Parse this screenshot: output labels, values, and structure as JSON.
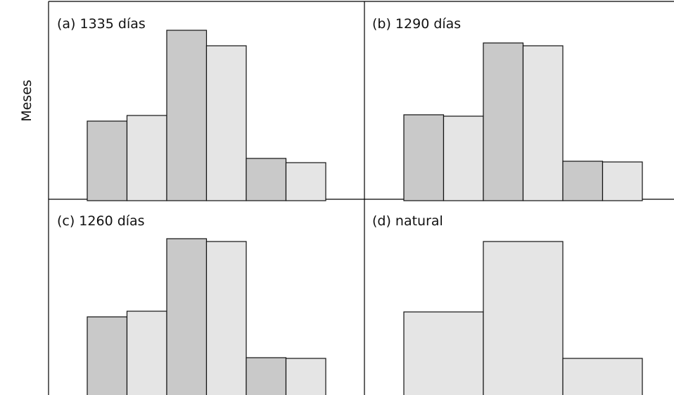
{
  "chart_data": [
    {
      "type": "bar",
      "title": "(a) 1335 días",
      "ylabel": "Meses",
      "ylim": [
        0,
        240
      ],
      "values": [
        111,
        119,
        240,
        218,
        58,
        52
      ],
      "colors": [
        "#c9c9c9",
        "#e5e5e5",
        "#c9c9c9",
        "#e5e5e5",
        "#c9c9c9",
        "#e5e5e5"
      ]
    },
    {
      "type": "bar",
      "title": "(b) 1290 días",
      "ylim": [
        0,
        240
      ],
      "values": [
        120,
        118,
        222,
        218,
        54,
        53
      ],
      "colors": [
        "#c9c9c9",
        "#e5e5e5",
        "#c9c9c9",
        "#e5e5e5",
        "#c9c9c9",
        "#e5e5e5"
      ]
    },
    {
      "type": "bar",
      "title": "(c) 1260 días",
      "ylim": [
        0,
        240
      ],
      "values": [
        111,
        119,
        222,
        218,
        53,
        52
      ],
      "colors": [
        "#c9c9c9",
        "#e5e5e5",
        "#c9c9c9",
        "#e5e5e5",
        "#c9c9c9",
        "#e5e5e5"
      ]
    },
    {
      "type": "bar",
      "title": "(d) natural",
      "ylim": [
        0,
        240
      ],
      "values": [
        118,
        218,
        52
      ],
      "colors": [
        "#e5e5e5",
        "#e5e5e5",
        "#e5e5e5"
      ]
    }
  ]
}
